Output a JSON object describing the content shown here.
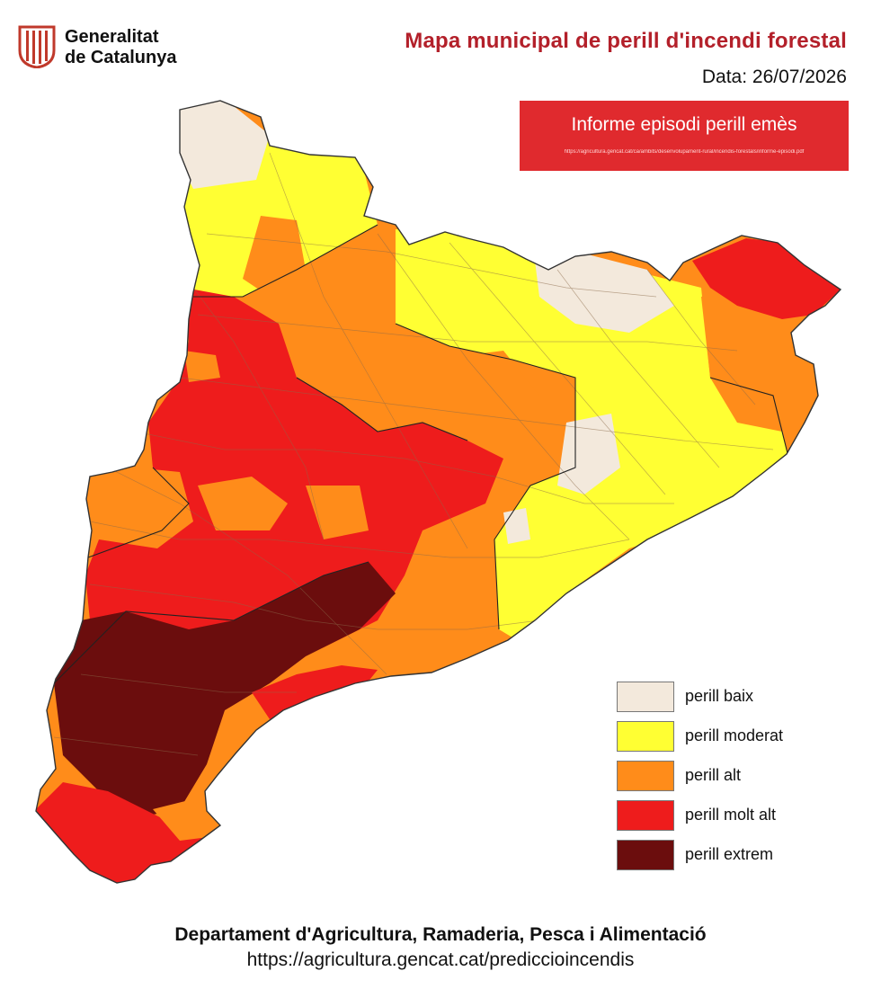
{
  "header": {
    "logo_line1": "Generalitat",
    "logo_line2": "de Catalunya",
    "title": "Mapa municipal de perill d'incendi forestal",
    "date": "Data: 26/07/2026"
  },
  "report": {
    "label": "Informe episodi perill emès"
  },
  "legend": {
    "items": [
      {
        "label": "perill baix",
        "color": "#f3e9dc"
      },
      {
        "label": "perill moderat",
        "color": "#ffff33"
      },
      {
        "label": "perill alt",
        "color": "#ff8c1a"
      },
      {
        "label": "perill molt alt",
        "color": "#ee1c1c"
      },
      {
        "label": "perill extrem",
        "color": "#6b0d0d"
      }
    ]
  },
  "footer": {
    "department": "Departament d'Agricultura, Ramaderia, Pesca i Alimentació",
    "url": "https://agricultura.gencat.cat/prediccioincendis"
  }
}
